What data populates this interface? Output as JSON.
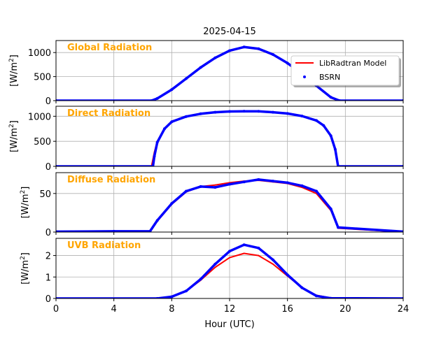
{
  "figure": {
    "title": "2025-04-15",
    "xlabel": "Hour (UTC)",
    "ylabel_prefix": "[W/m",
    "ylabel_exp": "2",
    "ylabel_suffix": "]",
    "xlim": [
      0,
      24
    ],
    "xticks": [
      0,
      4,
      8,
      12,
      16,
      20,
      24
    ],
    "label_color": "#ffa500",
    "model_color": "#ff0000",
    "bsrn_color": "#0000ff",
    "grid": true
  },
  "legend": {
    "placement": "top-right of first panel",
    "entries": [
      {
        "label": "LibRadtran Model",
        "style": "line",
        "color": "#ff0000"
      },
      {
        "label": "BSRN",
        "style": "marker",
        "color": "#0000ff"
      }
    ]
  },
  "chart_data": [
    {
      "type": "line",
      "panel_label": "Global Radiation",
      "ylim": [
        0,
        1250
      ],
      "yticks": [
        0,
        500,
        1000
      ],
      "series": [
        {
          "name": "LibRadtran Model",
          "color": "#ff0000",
          "x": [
            0,
            6.5,
            7.0,
            8.0,
            9.0,
            10.0,
            11.0,
            12.0,
            13.0,
            14.0,
            15.0,
            16.0,
            17.0,
            18.0,
            19.0,
            19.5,
            24
          ],
          "y": [
            0,
            0,
            40,
            220,
            450,
            680,
            880,
            1030,
            1110,
            1070,
            950,
            770,
            550,
            300,
            60,
            0,
            0
          ]
        },
        {
          "name": "BSRN",
          "color": "#0000ff",
          "x": [
            0,
            6.6,
            7.0,
            8.0,
            9.0,
            10.0,
            11.0,
            12.0,
            13.0,
            14.0,
            15.0,
            16.0,
            17.0,
            18.0,
            19.0,
            19.6,
            24
          ],
          "y": [
            0,
            0,
            45,
            230,
            460,
            690,
            890,
            1040,
            1115,
            1080,
            960,
            780,
            560,
            310,
            70,
            0,
            0
          ]
        }
      ]
    },
    {
      "type": "line",
      "panel_label": "Direct Radiation",
      "ylim": [
        0,
        1200
      ],
      "yticks": [
        0,
        500,
        1000
      ],
      "series": [
        {
          "name": "LibRadtran Model",
          "color": "#ff0000",
          "x": [
            0,
            6.6,
            6.8,
            7.0,
            7.5,
            8.0,
            9.0,
            10.0,
            11.0,
            12.0,
            13.0,
            14.0,
            15.0,
            16.0,
            17.0,
            18.0,
            18.5,
            19.0,
            19.3,
            19.5,
            24
          ],
          "y": [
            0,
            0,
            280,
            500,
            760,
            900,
            1000,
            1055,
            1085,
            1100,
            1105,
            1100,
            1085,
            1060,
            1010,
            920,
            820,
            620,
            350,
            0,
            0
          ]
        },
        {
          "name": "BSRN",
          "color": "#0000ff",
          "x": [
            0,
            6.7,
            6.8,
            7.0,
            7.5,
            8.0,
            9.0,
            10.0,
            11.0,
            12.0,
            13.0,
            14.0,
            15.0,
            16.0,
            17.0,
            18.0,
            18.5,
            19.0,
            19.3,
            19.5,
            24
          ],
          "y": [
            0,
            0,
            200,
            480,
            750,
            890,
            995,
            1050,
            1080,
            1095,
            1100,
            1098,
            1080,
            1055,
            1005,
            915,
            815,
            610,
            340,
            0,
            0
          ]
        }
      ]
    },
    {
      "type": "line",
      "panel_label": "Diffuse Radiation",
      "ylim": [
        0,
        77
      ],
      "yticks": [
        0,
        50
      ],
      "series": [
        {
          "name": "LibRadtran Model",
          "color": "#ff0000",
          "x": [
            0,
            6.5,
            7.0,
            8.0,
            9.0,
            10.0,
            11.0,
            12.0,
            13.0,
            14.0,
            15.0,
            16.0,
            17.0,
            18.0,
            19.0,
            19.5,
            24
          ],
          "y": [
            0,
            0,
            14,
            36,
            52,
            59,
            61,
            64,
            66,
            67,
            65,
            63,
            58,
            50,
            28,
            5,
            0
          ]
        },
        {
          "name": "BSRN",
          "color": "#0000ff",
          "x": [
            0,
            4.0,
            6.5,
            7.0,
            8.0,
            9.0,
            10.0,
            11.0,
            12.0,
            13.0,
            14.0,
            15.0,
            16.0,
            17.0,
            18.0,
            19.0,
            19.5,
            24
          ],
          "y": [
            0.5,
            1,
            1,
            15,
            37,
            53,
            59,
            58,
            62,
            65,
            68,
            66,
            64,
            60,
            53,
            30,
            6,
            0.5
          ]
        }
      ]
    },
    {
      "type": "line",
      "panel_label": "UVB Radiation",
      "ylim": [
        0,
        2.8
      ],
      "yticks": [
        0,
        1,
        2
      ],
      "series": [
        {
          "name": "LibRadtran Model",
          "color": "#ff0000",
          "x": [
            0,
            7.0,
            8.0,
            9.0,
            10.0,
            11.0,
            12.0,
            13.0,
            14.0,
            15.0,
            16.0,
            17.0,
            18.0,
            19.0,
            24
          ],
          "y": [
            0,
            0,
            0.08,
            0.35,
            0.85,
            1.45,
            1.9,
            2.1,
            2.0,
            1.6,
            1.05,
            0.5,
            0.15,
            0.02,
            0
          ]
        },
        {
          "name": "BSRN",
          "color": "#0000ff",
          "x": [
            0,
            7.0,
            8.0,
            9.0,
            10.0,
            11.0,
            12.0,
            13.0,
            14.0,
            15.0,
            16.0,
            17.0,
            18.0,
            19.0,
            24
          ],
          "y": [
            0,
            0,
            0.08,
            0.35,
            0.9,
            1.6,
            2.2,
            2.5,
            2.35,
            1.8,
            1.1,
            0.5,
            0.12,
            0.01,
            0
          ]
        }
      ]
    }
  ]
}
